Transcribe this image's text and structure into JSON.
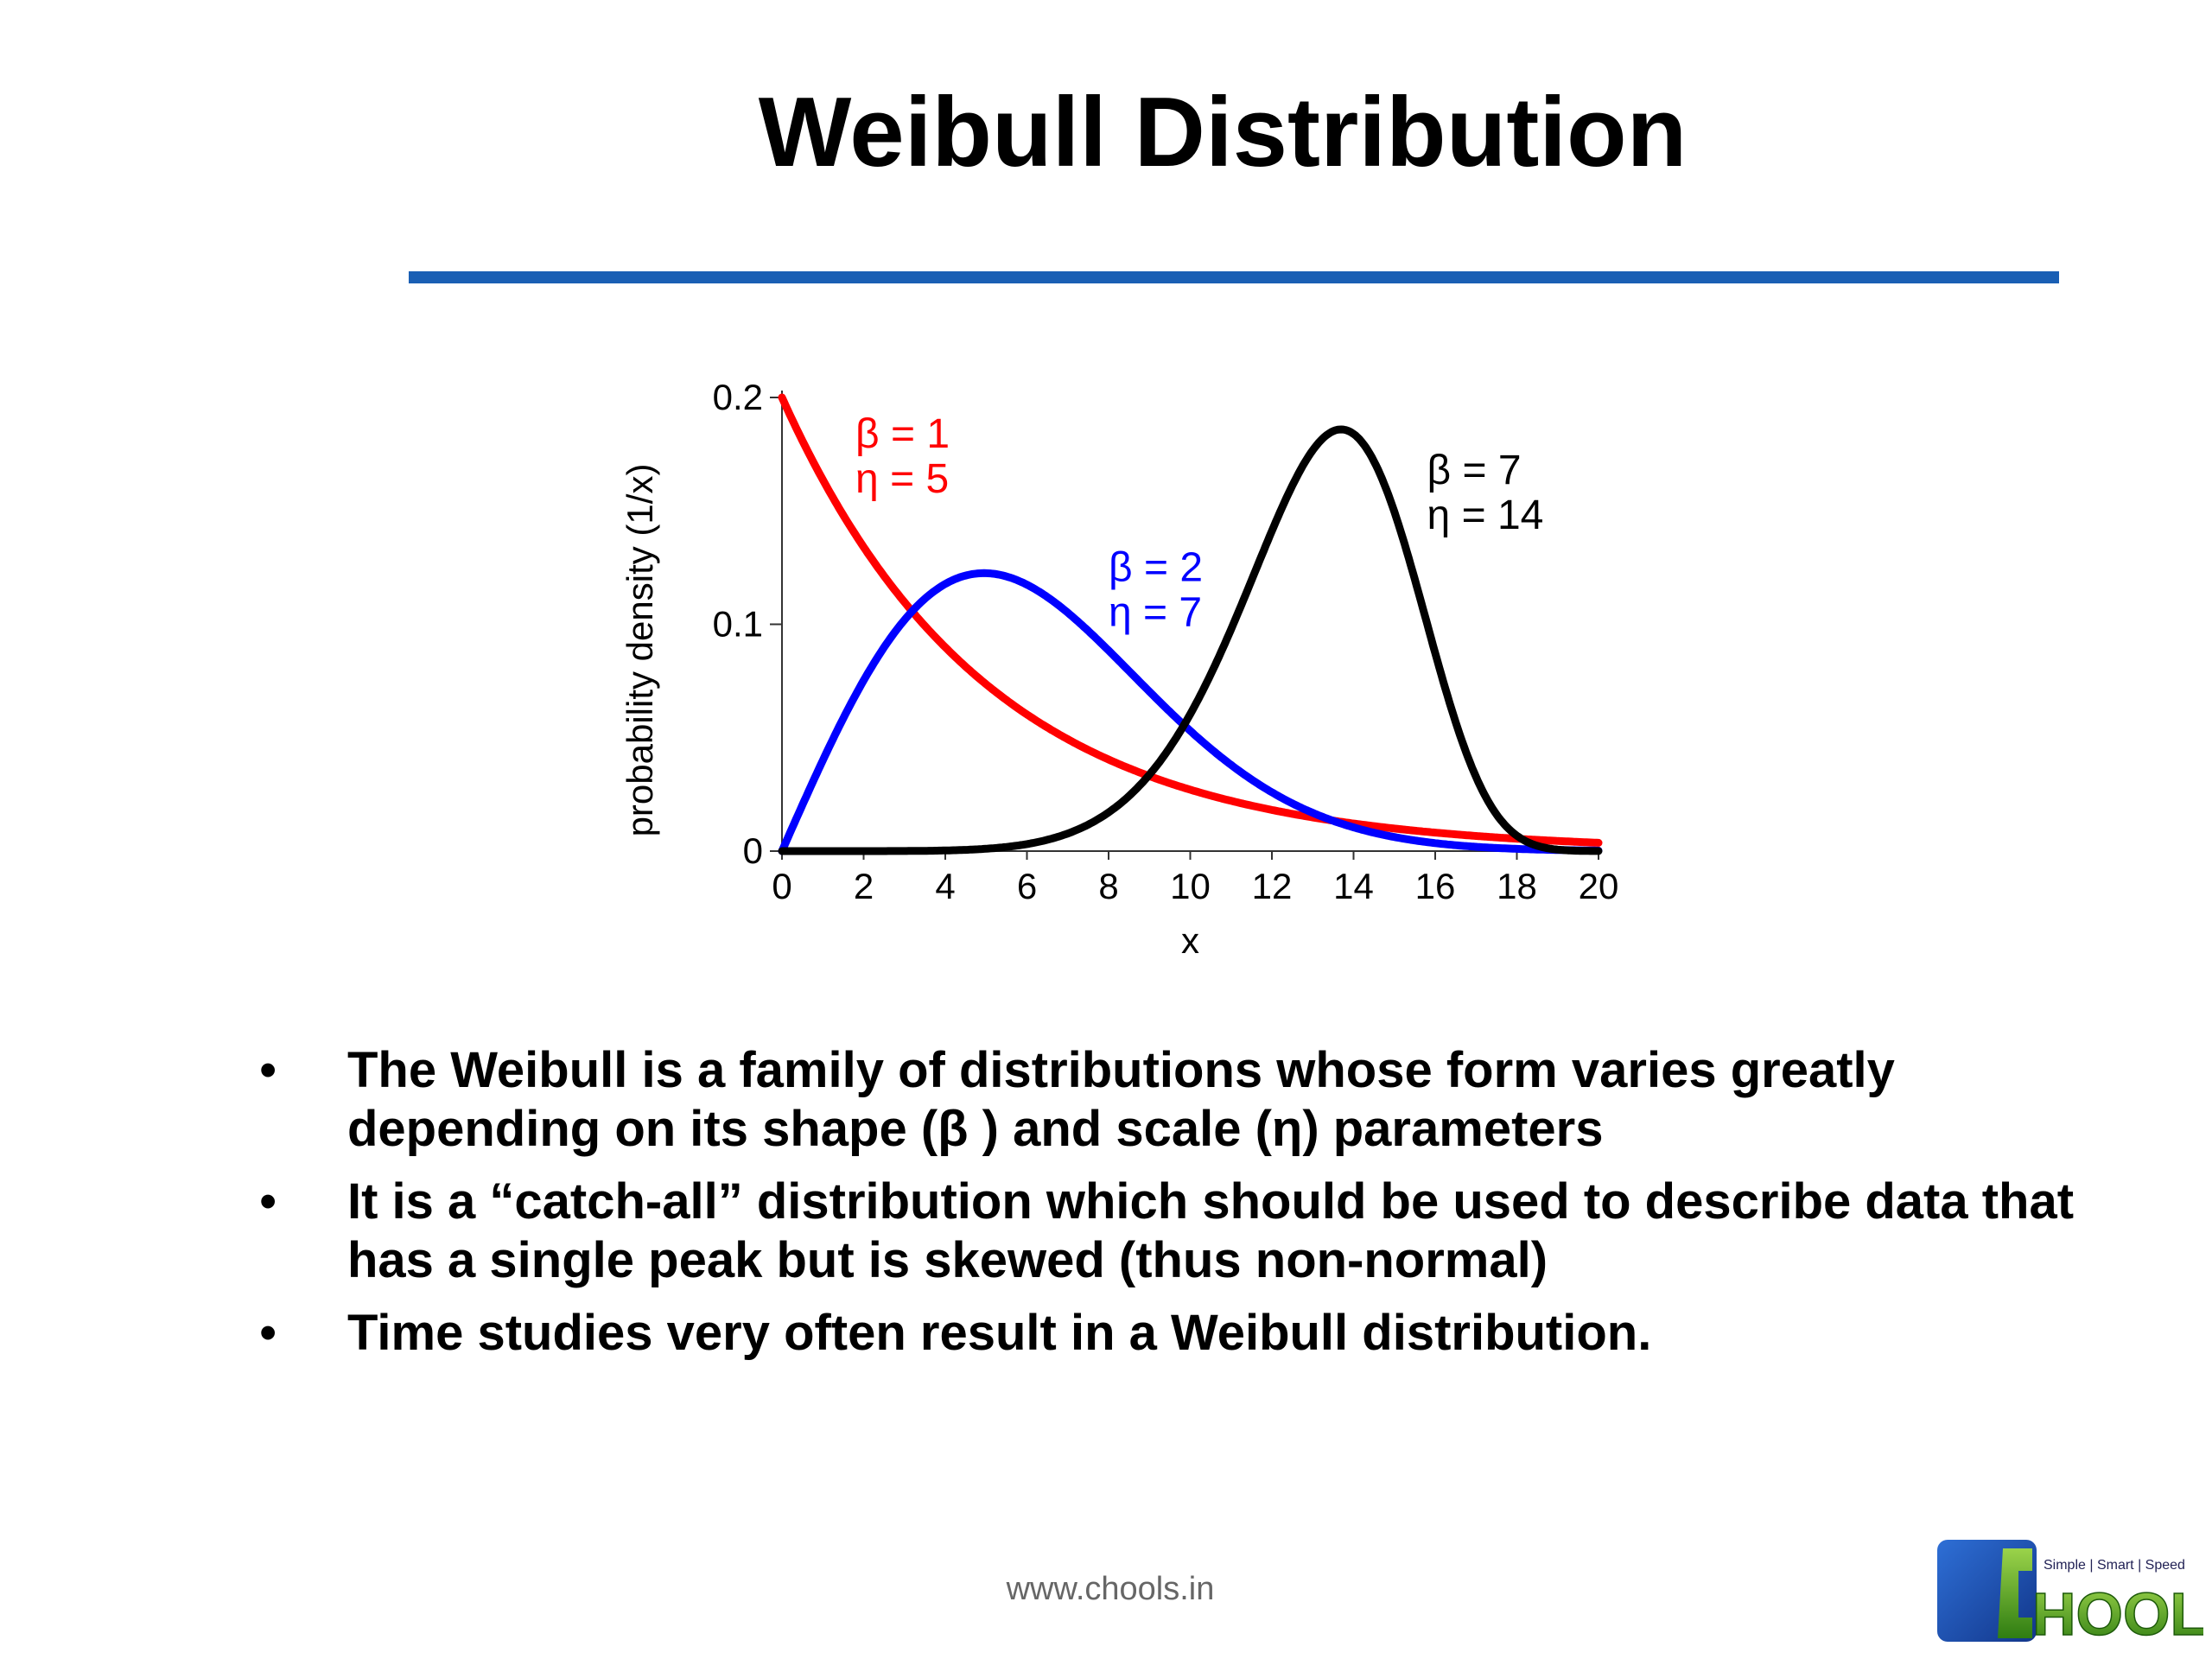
{
  "slide": {
    "title": "Weibull Distribution",
    "rule_color": "#1a5fb4",
    "bullets": [
      "The Weibull is a family of distributions whose form varies greatly depending on its shape (β ) and scale (η) parameters",
      "It is a “catch-all” distribution which should be used to describe data that has a single peak but is skewed (thus non-normal)",
      "Time studies very often result in a Weibull distribution."
    ],
    "bullet_symbol": "•",
    "footer_url": "www.chools.in",
    "logo": {
      "text": "HOOLS",
      "tagline": "Simple | Smart | Speed",
      "icon": "chools-logo-icon"
    }
  },
  "chart_data": {
    "type": "line",
    "title": "",
    "xlabel": "x",
    "ylabel": "probability density (1/x)",
    "xlim": [
      0,
      20
    ],
    "ylim": [
      0,
      0.2
    ],
    "x_ticks": [
      "0",
      "2",
      "4",
      "6",
      "8",
      "10",
      "12",
      "14",
      "16",
      "18",
      "20"
    ],
    "y_ticks": [
      "0",
      "0.1",
      "0.2"
    ],
    "grid": false,
    "series": [
      {
        "label_lines": [
          "β = 1",
          "η = 5"
        ],
        "shape": 1,
        "scale": 5,
        "color": "#ff0000",
        "x": [
          0,
          1,
          2,
          3,
          4,
          5,
          6,
          7,
          8,
          9,
          10,
          12,
          14,
          16,
          18,
          20
        ],
        "y": [
          0.2,
          0.164,
          0.134,
          0.11,
          0.09,
          0.074,
          0.06,
          0.049,
          0.04,
          0.033,
          0.027,
          0.018,
          0.012,
          0.008,
          0.005,
          0.004
        ]
      },
      {
        "label_lines": [
          "β = 2",
          "η = 7"
        ],
        "shape": 2,
        "scale": 7,
        "color": "#0000ff",
        "x": [
          0,
          1,
          2,
          3,
          4,
          5,
          6,
          7,
          8,
          9,
          10,
          12,
          14,
          16,
          18,
          20
        ],
        "y": [
          0,
          0.04,
          0.075,
          0.101,
          0.117,
          0.121,
          0.117,
          0.105,
          0.089,
          0.072,
          0.053,
          0.026,
          0.011,
          0.004,
          0.001,
          0
        ]
      },
      {
        "label_lines": [
          "β = 7",
          "η = 14"
        ],
        "shape": 7,
        "scale": 14,
        "color": "#000000",
        "x": [
          0,
          2,
          4,
          6,
          8,
          9,
          10,
          11,
          12,
          13,
          14,
          15,
          16,
          17,
          18,
          19,
          20
        ],
        "y": [
          0,
          0,
          0,
          0.001,
          0.007,
          0.014,
          0.027,
          0.048,
          0.081,
          0.13,
          0.183,
          0.16,
          0.095,
          0.043,
          0.015,
          0.003,
          0
        ]
      }
    ]
  }
}
